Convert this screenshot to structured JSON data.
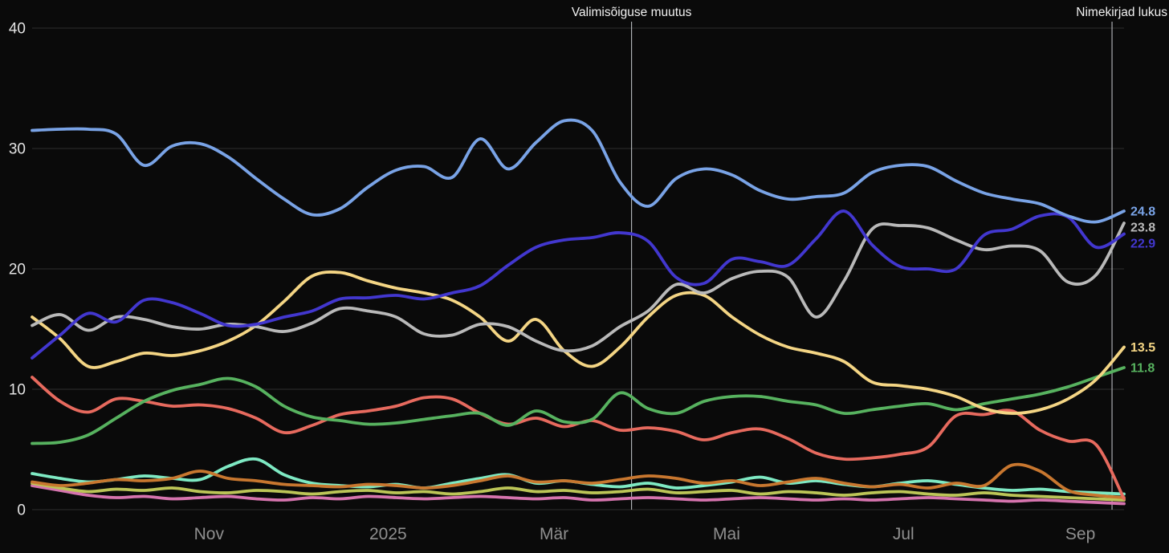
{
  "chart_data": {
    "type": "line",
    "title": "",
    "background": "#0a0a0a",
    "colors": {
      "grid": "#2d2d2d",
      "annotation_line": "#c9cdd1",
      "annotation_label": "#f2f2f2",
      "y_tick_label": "#e3e3e3",
      "x_tick_label": "#8f8f8f"
    },
    "y_axis": {
      "range": [
        0,
        40
      ],
      "ticks": [
        0,
        10,
        20,
        30,
        40
      ]
    },
    "x_axis": {
      "ticks": [
        {
          "label": "Nov",
          "pos": 0.162
        },
        {
          "label": "2025",
          "pos": 0.326
        },
        {
          "label": "Mär",
          "pos": 0.478
        },
        {
          "label": "Mai",
          "pos": 0.636
        },
        {
          "label": "Jul",
          "pos": 0.798
        },
        {
          "label": "Sep",
          "pos": 0.96
        }
      ]
    },
    "annotations": [
      {
        "label": "Valimisõiguse muutus",
        "pos": 0.549
      },
      {
        "label": "Nimekirjad lukus",
        "pos": 0.989
      }
    ],
    "series": [
      {
        "name": "pink",
        "color": "#d674ae",
        "end_label": null,
        "values": [
          2.0,
          1.6,
          1.2,
          1.0,
          1.1,
          0.9,
          1.0,
          1.1,
          0.9,
          0.8,
          1.0,
          0.9,
          1.1,
          1.0,
          0.9,
          1.0,
          1.1,
          1.0,
          0.9,
          1.0,
          0.8,
          0.9,
          1.0,
          0.9,
          0.8,
          0.9,
          1.0,
          0.9,
          0.8,
          0.9,
          0.8,
          0.9,
          1.0,
          0.9,
          0.8,
          0.7,
          0.8,
          0.7,
          0.6,
          0.5
        ]
      },
      {
        "name": "olive",
        "color": "#bcc557",
        "end_label": null,
        "values": [
          2.2,
          1.8,
          1.5,
          1.7,
          1.6,
          1.8,
          1.5,
          1.4,
          1.6,
          1.5,
          1.3,
          1.5,
          1.6,
          1.4,
          1.5,
          1.3,
          1.5,
          1.8,
          1.5,
          1.6,
          1.4,
          1.5,
          1.7,
          1.4,
          1.5,
          1.6,
          1.3,
          1.5,
          1.4,
          1.2,
          1.4,
          1.5,
          1.3,
          1.2,
          1.4,
          1.2,
          1.1,
          1.0,
          0.9,
          0.8
        ]
      },
      {
        "name": "teal",
        "color": "#7ee9c3",
        "end_label": null,
        "values": [
          3.0,
          2.6,
          2.3,
          2.5,
          2.8,
          2.6,
          2.5,
          3.6,
          4.2,
          2.9,
          2.2,
          2.0,
          1.9,
          2.1,
          1.8,
          2.2,
          2.6,
          2.9,
          2.2,
          2.4,
          2.1,
          1.9,
          2.2,
          1.8,
          2.0,
          2.3,
          2.7,
          2.2,
          2.4,
          2.1,
          1.9,
          2.2,
          2.4,
          2.1,
          1.8,
          1.6,
          1.7,
          1.5,
          1.4,
          1.3
        ]
      },
      {
        "name": "orange",
        "color": "#c8772f",
        "end_label": null,
        "values": [
          2.3,
          2.0,
          2.2,
          2.5,
          2.4,
          2.6,
          3.2,
          2.6,
          2.4,
          2.1,
          2.0,
          1.9,
          2.1,
          2.0,
          1.8,
          2.0,
          2.4,
          2.8,
          2.3,
          2.4,
          2.2,
          2.5,
          2.8,
          2.6,
          2.2,
          2.4,
          2.0,
          2.3,
          2.6,
          2.2,
          1.9,
          2.1,
          1.8,
          2.2,
          2.0,
          3.7,
          3.2,
          1.6,
          1.2,
          1.0
        ]
      },
      {
        "name": "red",
        "color": "#e76a5e",
        "end_label": null,
        "values": [
          11.0,
          9.0,
          8.1,
          9.2,
          9.0,
          8.6,
          8.7,
          8.4,
          7.6,
          6.4,
          7.0,
          7.9,
          8.2,
          8.6,
          9.3,
          9.2,
          8.0,
          7.1,
          7.6,
          6.9,
          7.4,
          6.6,
          6.8,
          6.5,
          5.8,
          6.4,
          6.7,
          5.9,
          4.7,
          4.2,
          4.3,
          4.6,
          5.2,
          7.8,
          7.9,
          8.2,
          6.6,
          5.7,
          5.4,
          0.9
        ]
      },
      {
        "name": "green",
        "color": "#57b25f",
        "end_label": "11.8",
        "values": [
          5.5,
          5.6,
          6.2,
          7.6,
          9.0,
          9.9,
          10.4,
          10.9,
          10.2,
          8.6,
          7.7,
          7.4,
          7.1,
          7.2,
          7.5,
          7.8,
          8.0,
          7.0,
          8.2,
          7.3,
          7.5,
          9.7,
          8.4,
          8.0,
          9.0,
          9.4,
          9.4,
          9.0,
          8.7,
          8.0,
          8.3,
          8.6,
          8.8,
          8.3,
          8.8,
          9.2,
          9.6,
          10.2,
          11.0,
          11.8
        ]
      },
      {
        "name": "yellow",
        "color": "#f4d584",
        "end_label": "13.5",
        "values": [
          16.0,
          14.2,
          11.9,
          12.3,
          13.0,
          12.8,
          13.2,
          14.0,
          15.3,
          17.3,
          19.4,
          19.7,
          19.0,
          18.4,
          18.0,
          17.4,
          16.0,
          14.0,
          15.8,
          13.2,
          11.9,
          13.5,
          16.0,
          17.8,
          17.8,
          16.0,
          14.5,
          13.5,
          13.0,
          12.3,
          10.6,
          10.3,
          10.0,
          9.4,
          8.4,
          8.0,
          8.3,
          9.2,
          10.8,
          13.5
        ]
      },
      {
        "name": "gray",
        "color": "#b9b9b9",
        "end_label": "23.8",
        "values": [
          15.3,
          16.2,
          14.9,
          16.0,
          15.8,
          15.2,
          15.0,
          15.4,
          15.2,
          14.8,
          15.5,
          16.7,
          16.5,
          16.0,
          14.6,
          14.5,
          15.4,
          15.2,
          14.0,
          13.2,
          13.6,
          15.2,
          16.5,
          18.7,
          18.0,
          19.2,
          19.8,
          19.3,
          16.0,
          19.0,
          23.3,
          23.6,
          23.4,
          22.4,
          21.6,
          21.9,
          21.5,
          18.9,
          19.5,
          23.8
        ]
      },
      {
        "name": "dark-blue",
        "color": "#4237cf",
        "end_label": "22.9",
        "values": [
          12.6,
          14.5,
          16.3,
          15.6,
          17.4,
          17.2,
          16.3,
          15.3,
          15.4,
          16.0,
          16.5,
          17.5,
          17.6,
          17.8,
          17.5,
          18.0,
          18.6,
          20.3,
          21.8,
          22.4,
          22.6,
          23.0,
          22.3,
          19.3,
          18.8,
          20.8,
          20.6,
          20.3,
          22.5,
          24.8,
          22.0,
          20.2,
          20.0,
          20.0,
          22.8,
          23.3,
          24.4,
          24.3,
          21.8,
          22.9
        ]
      },
      {
        "name": "light-blue",
        "color": "#79a3e6",
        "end_label": "24.8",
        "values": [
          31.5,
          31.6,
          31.6,
          31.2,
          28.6,
          30.2,
          30.4,
          29.3,
          27.5,
          25.8,
          24.5,
          25.0,
          26.8,
          28.2,
          28.5,
          27.6,
          30.8,
          28.3,
          30.5,
          32.3,
          31.5,
          27.2,
          25.2,
          27.5,
          28.3,
          27.8,
          26.5,
          25.8,
          26.0,
          26.3,
          28.0,
          28.6,
          28.5,
          27.3,
          26.3,
          25.8,
          25.4,
          24.4,
          23.9,
          24.8
        ]
      }
    ]
  }
}
